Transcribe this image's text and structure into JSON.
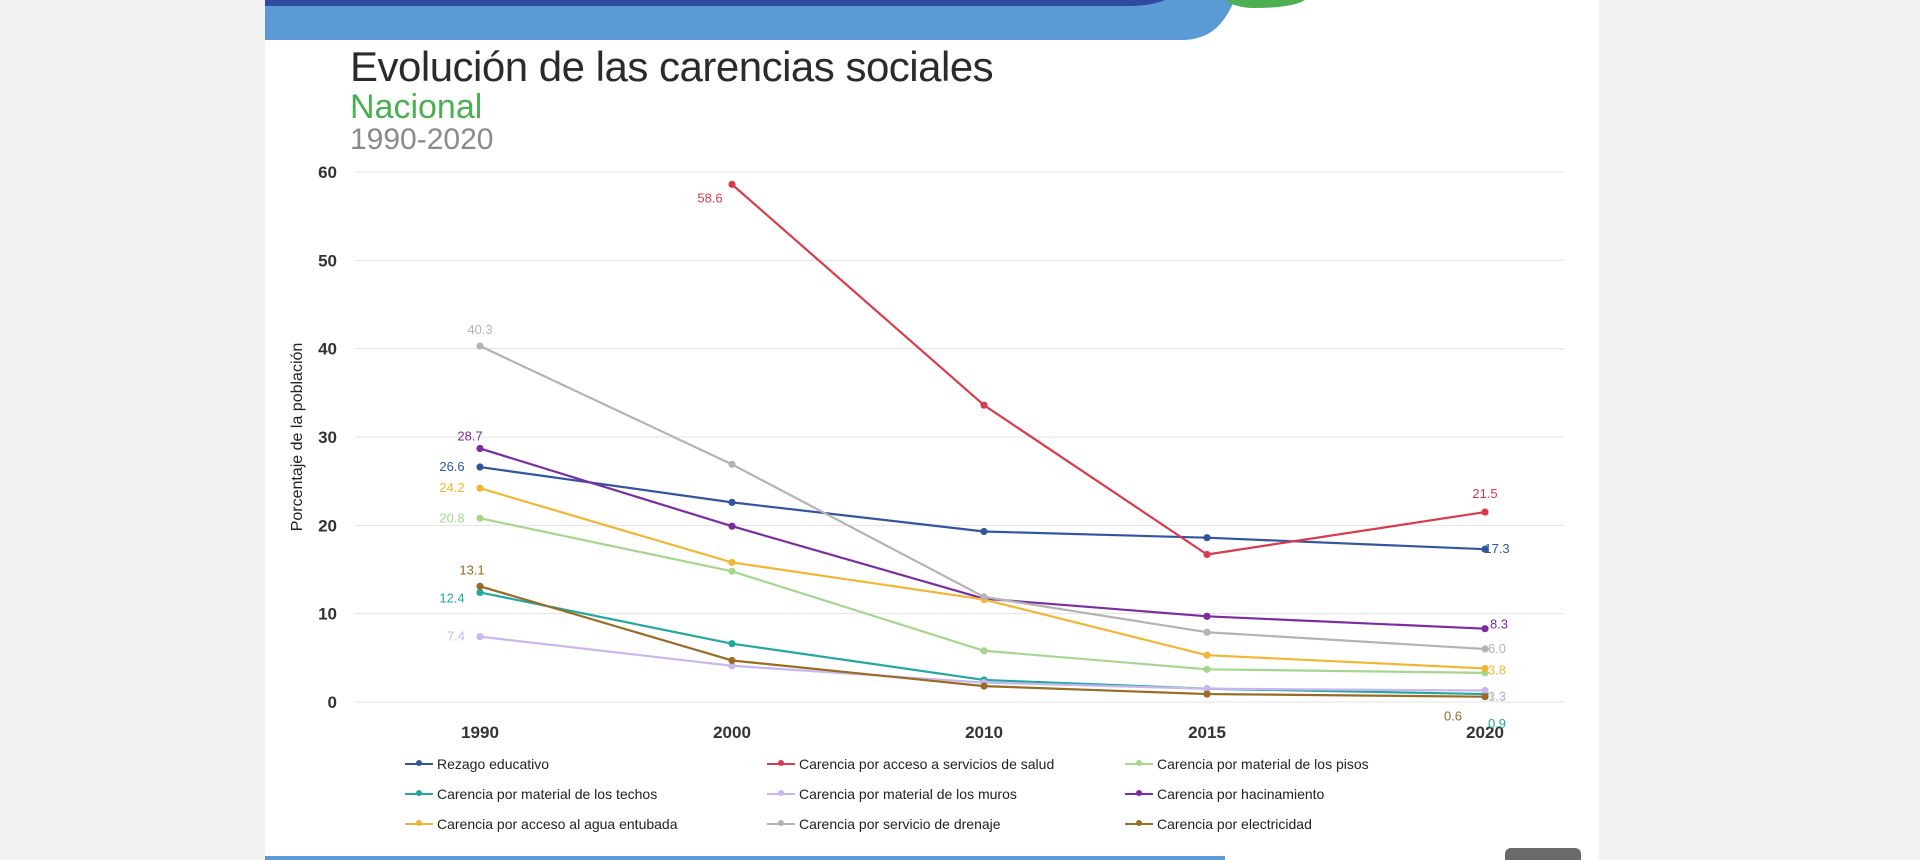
{
  "header": {
    "title": "Evolución de las carencias sociales",
    "subtitle": "Nacional",
    "period": "1990-2020"
  },
  "colors": {
    "background": "#f1f1f1",
    "band_blue_light": "#5b9bd5",
    "band_blue_dark": "#2f4aa0",
    "band_green": "#4caf50"
  },
  "chart_data": {
    "type": "line",
    "x": [
      1990,
      2000,
      2010,
      2015,
      2020
    ],
    "ylabel": "Porcentaje de la población",
    "ylim": [
      0,
      60
    ],
    "yticks": [
      0,
      10,
      20,
      30,
      40,
      50,
      60
    ],
    "grid": true,
    "legend_position": "bottom",
    "series": [
      {
        "name": "Rezago educativo",
        "color": "#3355a0",
        "values": [
          26.6,
          22.6,
          19.3,
          18.6,
          17.3
        ],
        "labels": [
          "26.6",
          null,
          null,
          null,
          "17.3"
        ]
      },
      {
        "name": "Carencia por acceso a servicios de salud",
        "color": "#d83b4b",
        "values": [
          null,
          58.6,
          33.6,
          16.7,
          21.5
        ],
        "labels": [
          null,
          "58.6",
          null,
          null,
          "21.5"
        ]
      },
      {
        "name": "Carencia por material de los pisos",
        "color": "#a6d68e",
        "values": [
          20.8,
          14.8,
          5.8,
          3.7,
          3.3
        ],
        "labels": [
          "20.8",
          null,
          null,
          null,
          "3.3"
        ]
      },
      {
        "name": "Carencia por material de los techos",
        "color": "#23a8a0",
        "values": [
          12.4,
          6.6,
          2.5,
          1.5,
          0.9
        ],
        "labels": [
          "12.4",
          null,
          null,
          null,
          "0.9"
        ]
      },
      {
        "name": "Carencia por material de los muros",
        "color": "#c7b6ef",
        "values": [
          7.4,
          4.1,
          2.2,
          1.5,
          1.3
        ],
        "labels": [
          "7.4",
          null,
          null,
          null,
          "1.3"
        ]
      },
      {
        "name": "Carencia por hacinamiento",
        "color": "#7b2ca3",
        "values": [
          28.7,
          19.9,
          11.7,
          9.7,
          8.3
        ],
        "labels": [
          "28.7",
          null,
          null,
          null,
          "8.3"
        ]
      },
      {
        "name": "Carencia por acceso al agua entubada",
        "color": "#f2b634",
        "values": [
          24.2,
          15.8,
          11.6,
          5.3,
          3.8
        ],
        "labels": [
          "24.2",
          null,
          null,
          null,
          "3.8"
        ]
      },
      {
        "name": "Carencia por servicio de drenaje",
        "color": "#b3b3b3",
        "values": [
          40.3,
          26.9,
          11.9,
          7.9,
          6.0
        ],
        "labels": [
          "40.3",
          null,
          null,
          null,
          "6.0"
        ]
      },
      {
        "name": "Carencia por electricidad",
        "color": "#9a6b22",
        "values": [
          13.1,
          4.7,
          1.8,
          0.9,
          0.6
        ],
        "labels": [
          "13.1",
          null,
          null,
          null,
          "0.6"
        ]
      }
    ]
  }
}
